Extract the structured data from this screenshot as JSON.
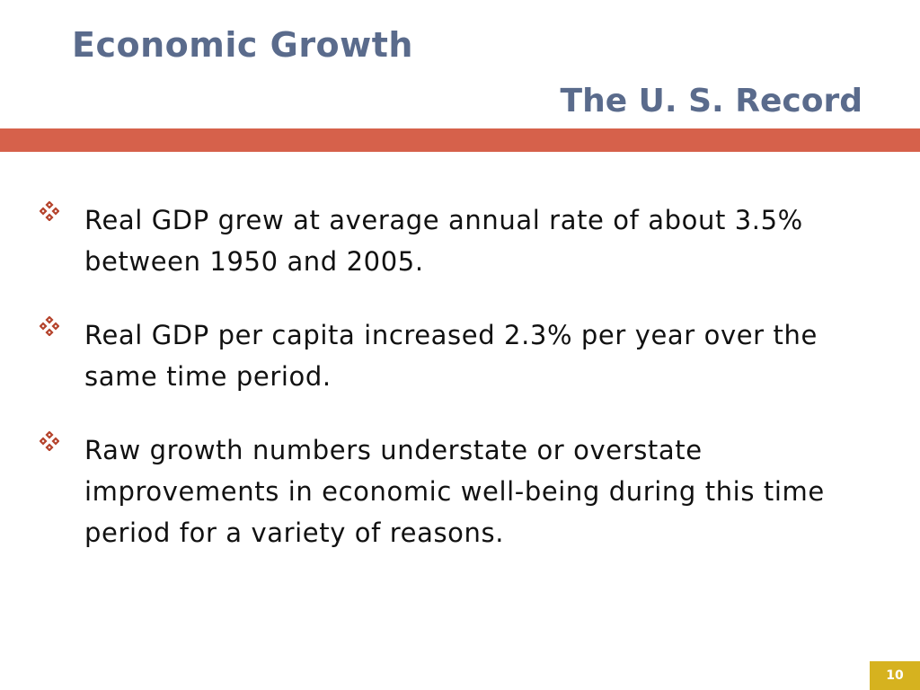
{
  "slide": {
    "title": "Economic Growth",
    "subtitle": "The U. S. Record",
    "bullet_icon": "four-diamond-ornament-icon",
    "bullets": [
      {
        "text": "Real GDP grew at average annual rate of about 3.5% between 1950 and 2005."
      },
      {
        "text": "Real GDP per capita increased 2.3% per year over the same time period."
      },
      {
        "text": "Raw growth numbers understate or overstate improvements in economic well-being during this time period for a variety of reasons."
      }
    ],
    "page_number": "10"
  },
  "colors": {
    "title": "#5a6b8c",
    "accent_band": "#d6614b",
    "bullet_icon": "#b5432c",
    "page_number_bg": "#d6b21f"
  }
}
